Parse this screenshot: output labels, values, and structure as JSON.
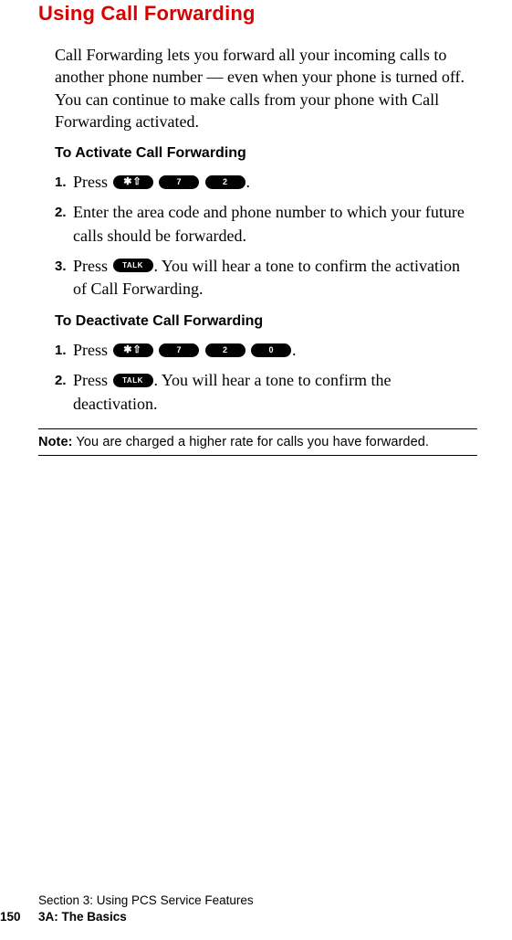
{
  "title": "Using Call Forwarding",
  "intro": "Call Forwarding lets you forward all your incoming calls to another phone number — even when your phone is turned off. You can continue to make calls from your phone with Call Forwarding activated.",
  "activate_heading": "To Activate Call Forwarding",
  "deactivate_heading": "To Deactivate Call Forwarding",
  "step_press": "Press ",
  "activate_step2": "Enter the area code and phone number to which your future calls should be forwarded.",
  "activate_step3_tail": ". You will hear a tone to confirm the activation of Call Forwarding.",
  "deactivate_step2_tail": ". You will hear a tone to confirm the deactivation.",
  "period": ".",
  "keys": {
    "star": "✱⇧",
    "seven": "7",
    "two": "2",
    "zero": "0",
    "talk": "TALK"
  },
  "note_label": "Note:",
  "note_text": " You are charged a higher rate for calls you have forwarded.",
  "footer_line1": "Section 3: Using PCS Service Features",
  "footer_page": "150",
  "footer_chapter": "3A: The Basics",
  "colors": {
    "title": "#d80000",
    "text": "#000000",
    "bg": "#ffffff",
    "key_bg": "#000000",
    "key_fg": "#ffffff"
  }
}
